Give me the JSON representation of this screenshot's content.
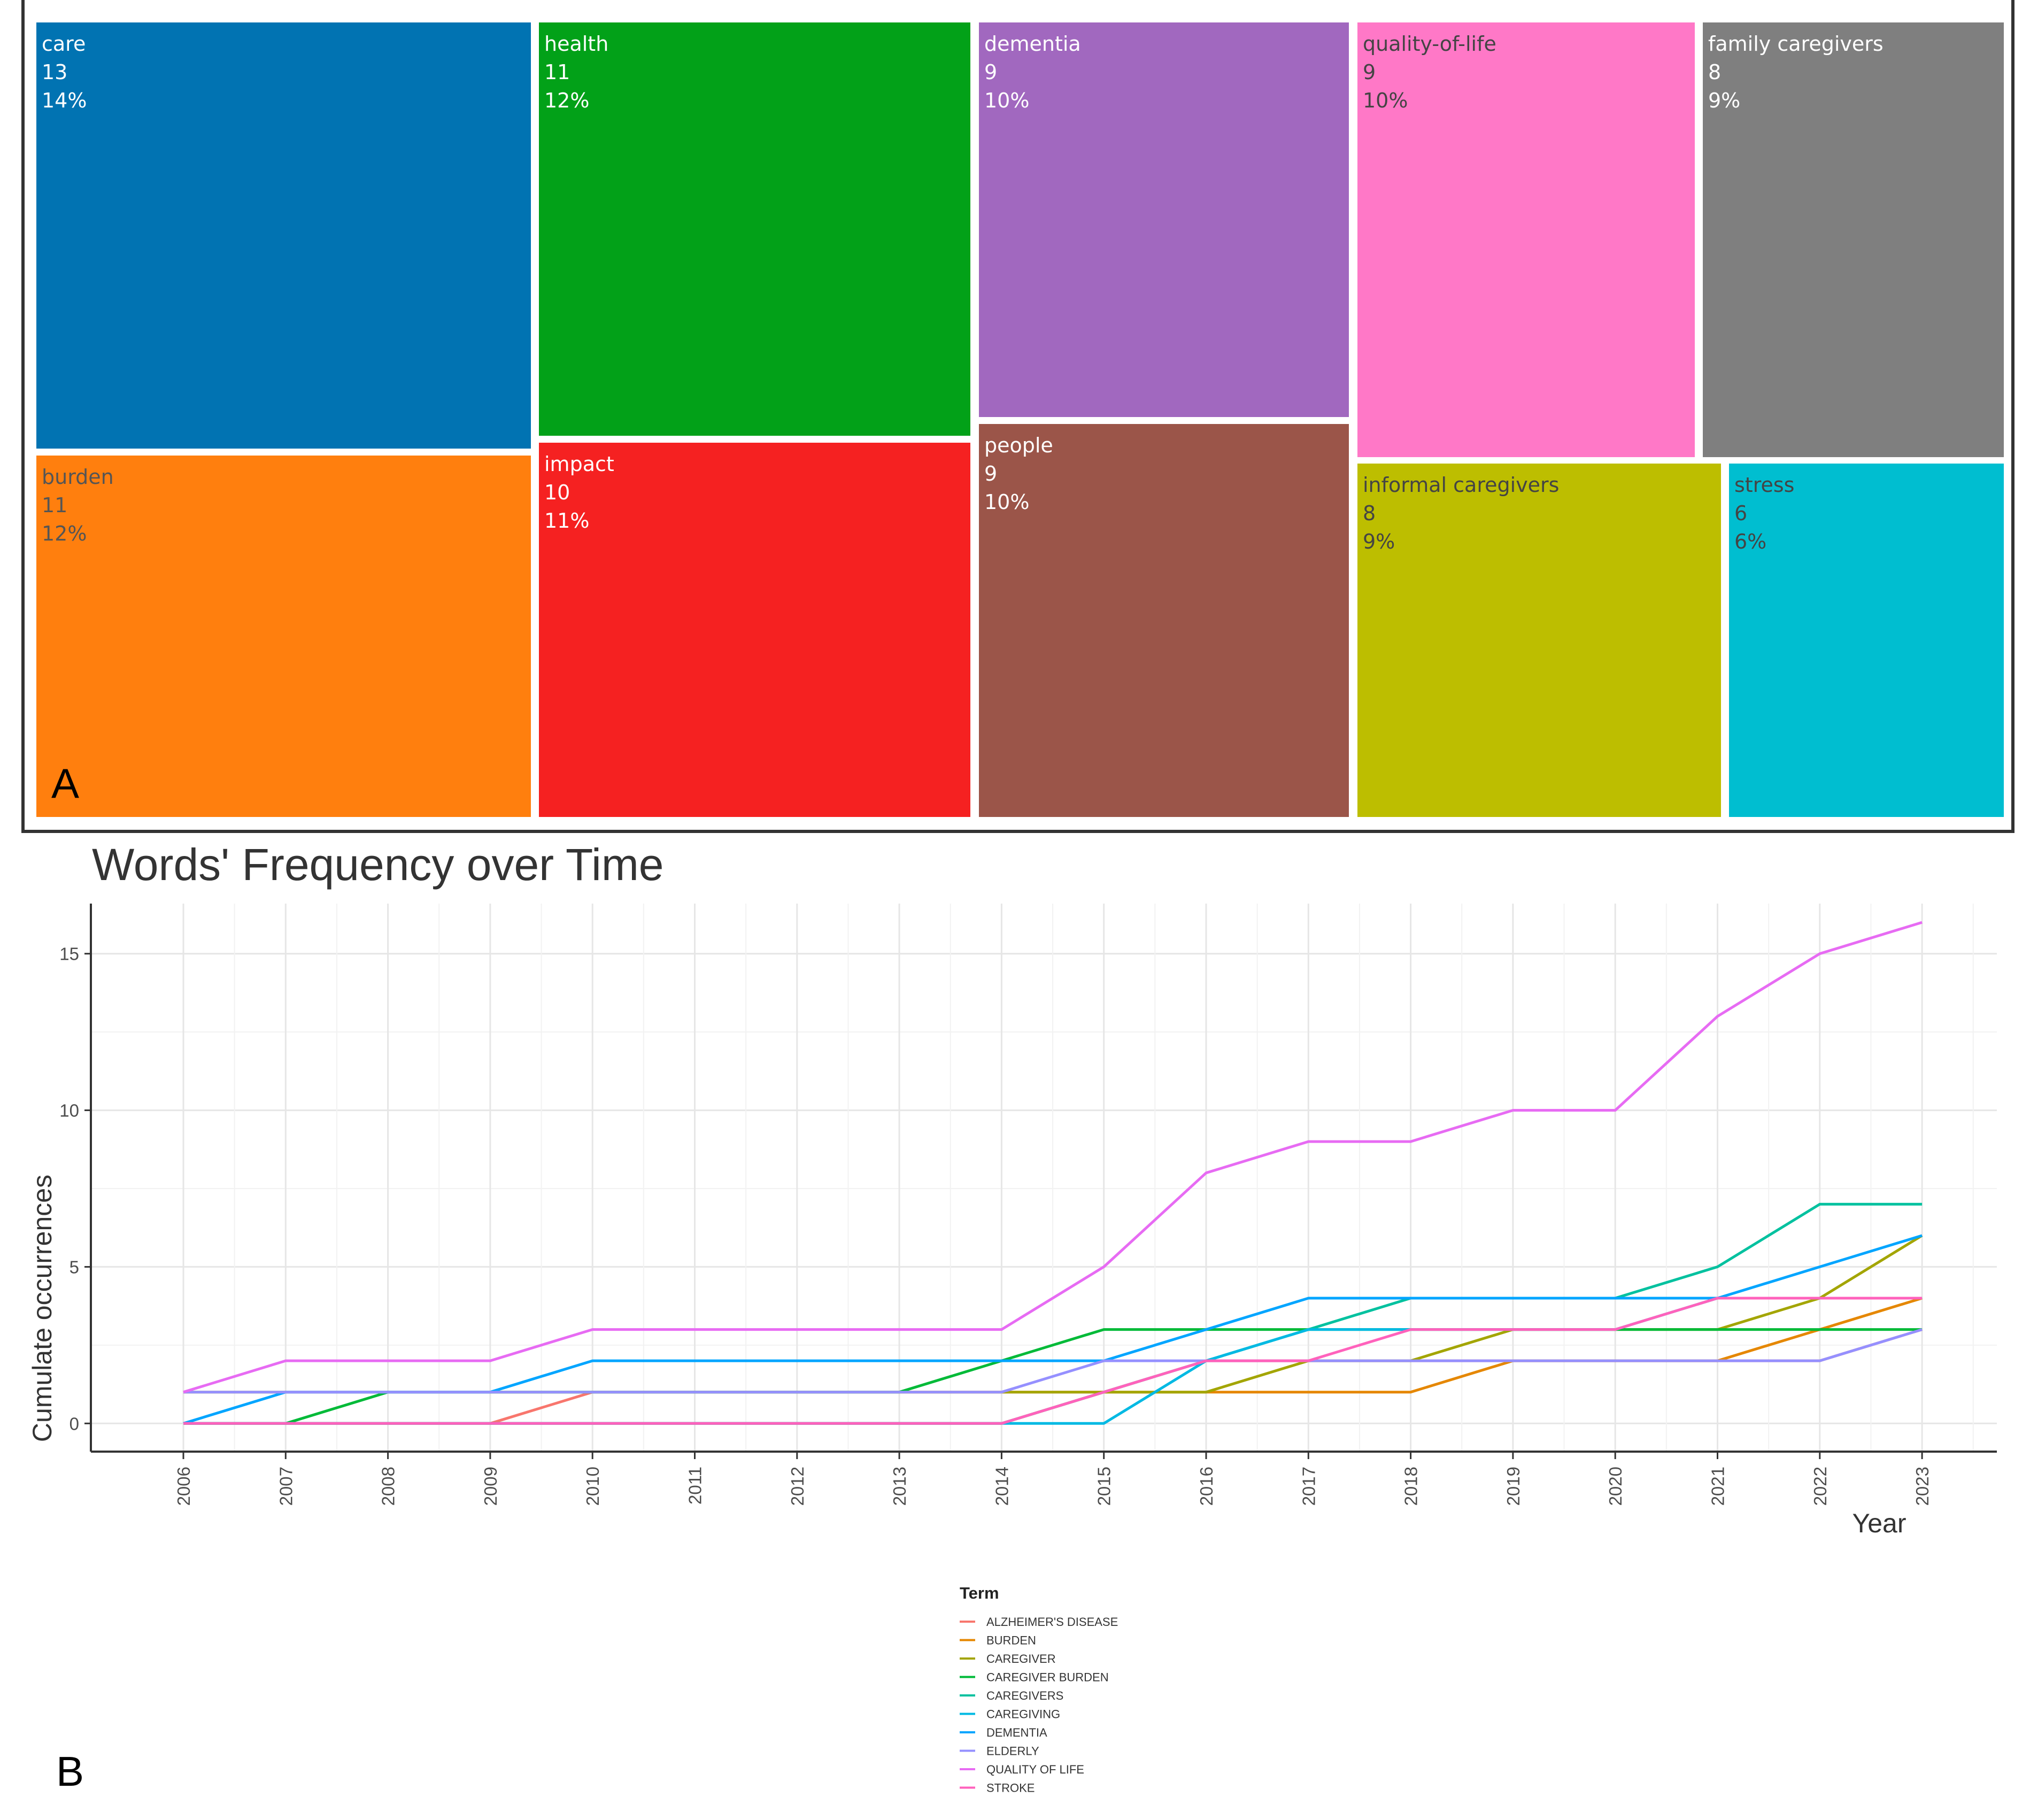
{
  "panel_a": {
    "label": "A",
    "chart_data": {
      "type": "treemap",
      "items": [
        {
          "term": "care",
          "count": "13",
          "percent": "14%",
          "color": "#0173B2",
          "text_color": "#ffffff"
        },
        {
          "term": "burden",
          "count": "11",
          "percent": "12%",
          "color": "#FF7F0E",
          "text_color": "#555555"
        },
        {
          "term": "health",
          "count": "11",
          "percent": "12%",
          "color": "#02A118",
          "text_color": "#ffffff"
        },
        {
          "term": "impact",
          "count": "10",
          "percent": "11%",
          "color": "#F52121",
          "text_color": "#ffffff"
        },
        {
          "term": "dementia",
          "count": "9",
          "percent": "10%",
          "color": "#A168BF",
          "text_color": "#ffffff"
        },
        {
          "term": "people",
          "count": "9",
          "percent": "10%",
          "color": "#9B5549",
          "text_color": "#ffffff"
        },
        {
          "term": "quality-of-life",
          "count": "9",
          "percent": "10%",
          "color": "#FF78C7",
          "text_color": "#444444"
        },
        {
          "term": "family caregivers",
          "count": "8",
          "percent": "9%",
          "color": "#7F7F7F",
          "text_color": "#ffffff"
        },
        {
          "term": "informal caregivers",
          "count": "8",
          "percent": "9%",
          "color": "#BDBE00",
          "text_color": "#444444"
        },
        {
          "term": "stress",
          "count": "6",
          "percent": "6%",
          "color": "#00BED0",
          "text_color": "#444444"
        }
      ]
    }
  },
  "panel_b": {
    "label": "B",
    "chart_data": {
      "type": "line",
      "title": "Words' Frequency over Time",
      "xlabel": "Year",
      "ylabel": "Cumulate occurrences",
      "ylim": [
        -0.9,
        16.6
      ],
      "yticks": [
        0,
        5,
        10,
        15
      ],
      "x": [
        2006,
        2007,
        2008,
        2009,
        2010,
        2011,
        2012,
        2013,
        2014,
        2015,
        2016,
        2017,
        2018,
        2019,
        2020,
        2021,
        2022,
        2023
      ],
      "legend_title": "Term",
      "series": [
        {
          "name": "ALZHEIMER'S DISEASE",
          "color": "#F8766D",
          "values": [
            0,
            0,
            0,
            0,
            1,
            1,
            1,
            1,
            1,
            1,
            2,
            2,
            2,
            2,
            2,
            2,
            2,
            3
          ]
        },
        {
          "name": "BURDEN",
          "color": "#E58700",
          "values": [
            0,
            0,
            0,
            0,
            0,
            0,
            0,
            0,
            0,
            1,
            1,
            1,
            1,
            2,
            2,
            2,
            3,
            4
          ]
        },
        {
          "name": "CAREGIVER",
          "color": "#A3A500",
          "values": [
            1,
            1,
            1,
            1,
            1,
            1,
            1,
            1,
            1,
            1,
            1,
            2,
            2,
            3,
            3,
            3,
            4,
            6
          ]
        },
        {
          "name": "CAREGIVER BURDEN",
          "color": "#00BA38",
          "values": [
            0,
            0,
            1,
            1,
            1,
            1,
            1,
            1,
            2,
            3,
            3,
            3,
            3,
            3,
            3,
            3,
            3,
            3
          ]
        },
        {
          "name": "CAREGIVERS",
          "color": "#00C19F",
          "values": [
            0,
            0,
            0,
            0,
            0,
            0,
            0,
            0,
            0,
            1,
            2,
            3,
            4,
            4,
            4,
            5,
            7,
            7
          ]
        },
        {
          "name": "CAREGIVING",
          "color": "#00B9E3",
          "values": [
            0,
            0,
            0,
            0,
            0,
            0,
            0,
            0,
            0,
            0,
            2,
            3,
            3,
            3,
            3,
            4,
            4,
            4
          ]
        },
        {
          "name": "DEMENTIA",
          "color": "#00A5FF",
          "values": [
            0,
            1,
            1,
            1,
            2,
            2,
            2,
            2,
            2,
            2,
            3,
            4,
            4,
            4,
            4,
            4,
            5,
            6
          ]
        },
        {
          "name": "ELDERLY",
          "color": "#9590FF",
          "values": [
            1,
            1,
            1,
            1,
            1,
            1,
            1,
            1,
            1,
            2,
            2,
            2,
            2,
            2,
            2,
            2,
            2,
            3
          ]
        },
        {
          "name": "QUALITY OF LIFE",
          "color": "#E76BF3",
          "values": [
            1,
            2,
            2,
            2,
            3,
            3,
            3,
            3,
            3,
            5,
            8,
            9,
            9,
            10,
            10,
            13,
            15,
            16
          ]
        },
        {
          "name": "STROKE",
          "color": "#FF62BC",
          "values": [
            0,
            0,
            0,
            0,
            0,
            0,
            0,
            0,
            0,
            1,
            2,
            2,
            3,
            3,
            3,
            4,
            4,
            4
          ]
        }
      ]
    }
  }
}
